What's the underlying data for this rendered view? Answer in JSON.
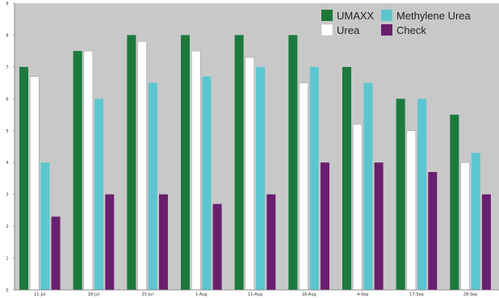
{
  "chart_data": {
    "type": "bar",
    "categories": [
      "11-Jul",
      "18-Jul",
      "25-Jul",
      "1-Aug",
      "11-Aug",
      "18-Aug",
      "4-Sep",
      "17-Sep",
      "28-Sep"
    ],
    "series": [
      {
        "name": "UMAXX",
        "color": "#1c7a3c",
        "values": [
          7.0,
          7.5,
          8.0,
          8.0,
          8.0,
          8.0,
          7.0,
          6.0,
          5.5
        ]
      },
      {
        "name": "Urea",
        "color": "#ffffff",
        "values": [
          6.7,
          7.5,
          7.8,
          7.5,
          7.3,
          6.5,
          5.2,
          5.0,
          4.0
        ]
      },
      {
        "name": "Methylene Urea",
        "color": "#5bc6d0",
        "values": [
          4.0,
          6.0,
          6.5,
          6.7,
          7.0,
          7.0,
          6.5,
          6.0,
          4.3
        ]
      },
      {
        "name": "Check",
        "color": "#6a1f6e",
        "values": [
          2.3,
          3.0,
          3.0,
          2.7,
          3.0,
          4.0,
          4.0,
          3.7,
          3.0
        ]
      }
    ],
    "yticks": [
      "0",
      "1",
      "2",
      "3",
      "4",
      "5",
      "6",
      "7",
      "8",
      "9"
    ],
    "ylim": [
      0,
      9
    ],
    "grid": false,
    "legend_position": "top-right",
    "background": "#c8c8c8"
  }
}
